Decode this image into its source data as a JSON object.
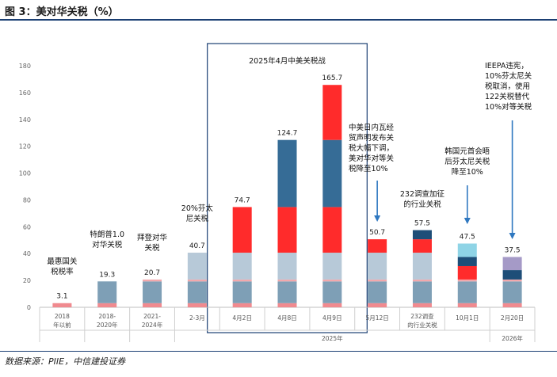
{
  "figure": {
    "title": "图 3：美对华关税（%）",
    "source": "数据来源：PIIE，中信建投证券"
  },
  "colors": {
    "base": "#7e9fb6",
    "mfn": "#f08a8f",
    "tariff_2018": "#f2a8ac",
    "fentanyl": "#b7c9d8",
    "reciprocal": "#ff2b2b",
    "escalation": "#366c96",
    "steel": "#1e4e78",
    "ieepa": "#a59ac7",
    "semiconductor": "#8fd4e6",
    "highlight_box": "#1b3f73",
    "arrow": "#2f78c0"
  },
  "chart_data": {
    "type": "bar",
    "stacked": true,
    "ylim": [
      0,
      180
    ],
    "yticks": [
      0,
      20,
      40,
      60,
      80,
      100,
      120,
      140,
      160,
      180
    ],
    "grid": false,
    "categories": [
      "2018年以前",
      "2018-2020年",
      "2021-2024年",
      "2-3月",
      "4月2日",
      "4月8日",
      "4月9日",
      "5月12日",
      "232调查的行业关税",
      "10月1日",
      "2月20日"
    ],
    "groups": [
      {
        "label": "2025年",
        "from": 3,
        "to": 9
      },
      {
        "label": "2026年",
        "from": 10,
        "to": 10
      }
    ],
    "totals": [
      "3.1",
      "19.3",
      "20.7",
      "40.7",
      "74.7",
      "124.7",
      "165.7",
      "50.7",
      "57.5",
      "47.5",
      "37.5"
    ],
    "stacks": [
      [
        {
          "v": 3.1,
          "c": "mfn"
        }
      ],
      [
        {
          "v": 3.1,
          "c": "mfn"
        },
        {
          "v": 16.2,
          "c": "base"
        }
      ],
      [
        {
          "v": 3.1,
          "c": "mfn"
        },
        {
          "v": 16.2,
          "c": "base"
        },
        {
          "v": 1.4,
          "c": "tariff_2018"
        }
      ],
      [
        {
          "v": 3.1,
          "c": "mfn"
        },
        {
          "v": 16.2,
          "c": "base"
        },
        {
          "v": 1.4,
          "c": "tariff_2018"
        },
        {
          "v": 20,
          "c": "fentanyl"
        }
      ],
      [
        {
          "v": 3.1,
          "c": "mfn"
        },
        {
          "v": 16.2,
          "c": "base"
        },
        {
          "v": 1.4,
          "c": "tariff_2018"
        },
        {
          "v": 20,
          "c": "fentanyl"
        },
        {
          "v": 34,
          "c": "reciprocal"
        }
      ],
      [
        {
          "v": 3.1,
          "c": "mfn"
        },
        {
          "v": 16.2,
          "c": "base"
        },
        {
          "v": 1.4,
          "c": "tariff_2018"
        },
        {
          "v": 20,
          "c": "fentanyl"
        },
        {
          "v": 34,
          "c": "reciprocal"
        },
        {
          "v": 50,
          "c": "escalation"
        }
      ],
      [
        {
          "v": 3.1,
          "c": "mfn"
        },
        {
          "v": 16.2,
          "c": "base"
        },
        {
          "v": 1.4,
          "c": "tariff_2018"
        },
        {
          "v": 20,
          "c": "fentanyl"
        },
        {
          "v": 34,
          "c": "reciprocal"
        },
        {
          "v": 50,
          "c": "escalation"
        },
        {
          "v": 41,
          "c": "reciprocal"
        }
      ],
      [
        {
          "v": 3.1,
          "c": "mfn"
        },
        {
          "v": 16.2,
          "c": "base"
        },
        {
          "v": 1.4,
          "c": "tariff_2018"
        },
        {
          "v": 20,
          "c": "fentanyl"
        },
        {
          "v": 10,
          "c": "reciprocal"
        }
      ],
      [
        {
          "v": 3.1,
          "c": "mfn"
        },
        {
          "v": 16.2,
          "c": "base"
        },
        {
          "v": 1.4,
          "c": "tariff_2018"
        },
        {
          "v": 20,
          "c": "fentanyl"
        },
        {
          "v": 10,
          "c": "reciprocal"
        },
        {
          "v": 6.8,
          "c": "steel"
        }
      ],
      [
        {
          "v": 3.1,
          "c": "mfn"
        },
        {
          "v": 16.2,
          "c": "base"
        },
        {
          "v": 1.4,
          "c": "tariff_2018"
        },
        {
          "v": 10,
          "c": "reciprocal"
        },
        {
          "v": 6.8,
          "c": "steel"
        },
        {
          "v": 10,
          "c": "semiconductor"
        }
      ],
      [
        {
          "v": 3.1,
          "c": "mfn"
        },
        {
          "v": 16.2,
          "c": "base"
        },
        {
          "v": 1.4,
          "c": "tariff_2018"
        },
        {
          "v": 7,
          "c": "steel"
        },
        {
          "v": 9.8,
          "c": "ieepa"
        }
      ]
    ],
    "annotations": [
      {
        "cat": 0,
        "lines": [
          "最惠国关",
          "税税率"
        ]
      },
      {
        "cat": 1,
        "lines": [
          "特朗普1.0",
          "对华关税"
        ]
      },
      {
        "cat": 2,
        "lines": [
          "拜登对华",
          "关税"
        ]
      },
      {
        "cat": 3,
        "lines": [
          "20%芬太",
          "尼关税"
        ]
      },
      {
        "cat": 5,
        "lines": [
          "2025年4月中美关税战"
        ]
      },
      {
        "cat": 7,
        "lines": [
          "中美日内瓦经",
          "贸声明发布关",
          "税大幅下调，",
          "美对华对等关",
          "税降至10%"
        ]
      },
      {
        "cat": 8,
        "lines": [
          "232调查加征",
          "的行业关税"
        ]
      },
      {
        "cat": 9,
        "lines": [
          "韩国元首会晤",
          "后芬太尼关税",
          "降至10%"
        ]
      },
      {
        "cat": 10,
        "lines": [
          "IEEPA违宪，",
          "10%芬太尼关",
          "税取消，使用",
          "122关税替代",
          "10%对等关税"
        ]
      }
    ]
  }
}
